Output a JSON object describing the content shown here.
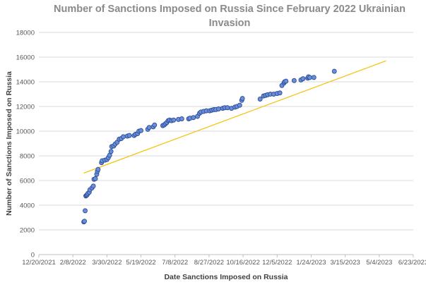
{
  "chart_data": {
    "type": "scatter",
    "title_line1": "Number of Sanctions Imposed on Russia Since February 2022 Ukrainian",
    "title_line2": "Invasion",
    "xlabel": "Date Sanctions Imposed on Russia",
    "ylabel": "Number of Sanctions Imposed on Russia",
    "ylim": [
      0,
      18000
    ],
    "yticks": [
      0,
      2000,
      4000,
      6000,
      8000,
      10000,
      12000,
      14000,
      16000,
      18000
    ],
    "x_unit": "days since 12/20/2021",
    "xlim": [
      0,
      550
    ],
    "xticks": [
      {
        "value": 0,
        "label": "12/20/2021"
      },
      {
        "value": 50,
        "label": "2/8/2022"
      },
      {
        "value": 100,
        "label": "3/30/2022"
      },
      {
        "value": 150,
        "label": "5/19/2022"
      },
      {
        "value": 200,
        "label": "7/8/2022"
      },
      {
        "value": 250,
        "label": "8/27/2022"
      },
      {
        "value": 300,
        "label": "10/16/2022"
      },
      {
        "value": 350,
        "label": "12/5/2022"
      },
      {
        "value": 400,
        "label": "1/24/2023"
      },
      {
        "value": 450,
        "label": "3/15/2023"
      },
      {
        "value": 500,
        "label": "5/4/2023"
      },
      {
        "value": 550,
        "label": "6/23/2023"
      }
    ],
    "grid": "horizontal",
    "trendline": {
      "x": [
        66,
        510
      ],
      "y": [
        6600,
        15700
      ]
    },
    "points": [
      [
        66,
        2650
      ],
      [
        67,
        2700
      ],
      [
        68,
        3550
      ],
      [
        69,
        4750
      ],
      [
        70,
        4800
      ],
      [
        71,
        4850
      ],
      [
        72,
        4950
      ],
      [
        74,
        5050
      ],
      [
        75,
        5250
      ],
      [
        78,
        5400
      ],
      [
        80,
        5550
      ],
      [
        81,
        6100
      ],
      [
        83,
        6150
      ],
      [
        85,
        6500
      ],
      [
        86,
        6750
      ],
      [
        87,
        6900
      ],
      [
        92,
        7450
      ],
      [
        93,
        7600
      ],
      [
        97,
        7650
      ],
      [
        100,
        7700
      ],
      [
        102,
        7850
      ],
      [
        104,
        8050
      ],
      [
        106,
        8350
      ],
      [
        107,
        8750
      ],
      [
        110,
        8800
      ],
      [
        112,
        8950
      ],
      [
        115,
        9100
      ],
      [
        118,
        9350
      ],
      [
        121,
        9400
      ],
      [
        124,
        9550
      ],
      [
        130,
        9600
      ],
      [
        133,
        9650
      ],
      [
        140,
        9650
      ],
      [
        142,
        9750
      ],
      [
        145,
        9800
      ],
      [
        147,
        10000
      ],
      [
        150,
        10050
      ],
      [
        160,
        10150
      ],
      [
        162,
        10300
      ],
      [
        168,
        10350
      ],
      [
        170,
        10500
      ],
      [
        182,
        10450
      ],
      [
        184,
        10500
      ],
      [
        186,
        10600
      ],
      [
        188,
        10700
      ],
      [
        190,
        10850
      ],
      [
        192,
        10900
      ],
      [
        195,
        10850
      ],
      [
        198,
        10900
      ],
      [
        205,
        10950
      ],
      [
        210,
        11000
      ],
      [
        220,
        11000
      ],
      [
        222,
        11050
      ],
      [
        227,
        11100
      ],
      [
        233,
        11200
      ],
      [
        236,
        11450
      ],
      [
        238,
        11550
      ],
      [
        242,
        11600
      ],
      [
        246,
        11650
      ],
      [
        251,
        11650
      ],
      [
        254,
        11700
      ],
      [
        257,
        11750
      ],
      [
        260,
        11750
      ],
      [
        264,
        11800
      ],
      [
        270,
        11850
      ],
      [
        273,
        11900
      ],
      [
        277,
        11900
      ],
      [
        283,
        11850
      ],
      [
        288,
        11950
      ],
      [
        291,
        12000
      ],
      [
        295,
        12100
      ],
      [
        298,
        12500
      ],
      [
        299,
        12650
      ],
      [
        325,
        12600
      ],
      [
        330,
        12850
      ],
      [
        333,
        12900
      ],
      [
        336,
        12950
      ],
      [
        340,
        13000
      ],
      [
        345,
        13000
      ],
      [
        350,
        13050
      ],
      [
        354,
        13100
      ],
      [
        357,
        13700
      ],
      [
        360,
        13900
      ],
      [
        361,
        14000
      ],
      [
        363,
        14050
      ],
      [
        375,
        14100
      ],
      [
        385,
        14150
      ],
      [
        388,
        14250
      ],
      [
        395,
        14300
      ],
      [
        396,
        14400
      ],
      [
        398,
        14350
      ],
      [
        404,
        14350
      ],
      [
        434,
        14850
      ]
    ]
  }
}
